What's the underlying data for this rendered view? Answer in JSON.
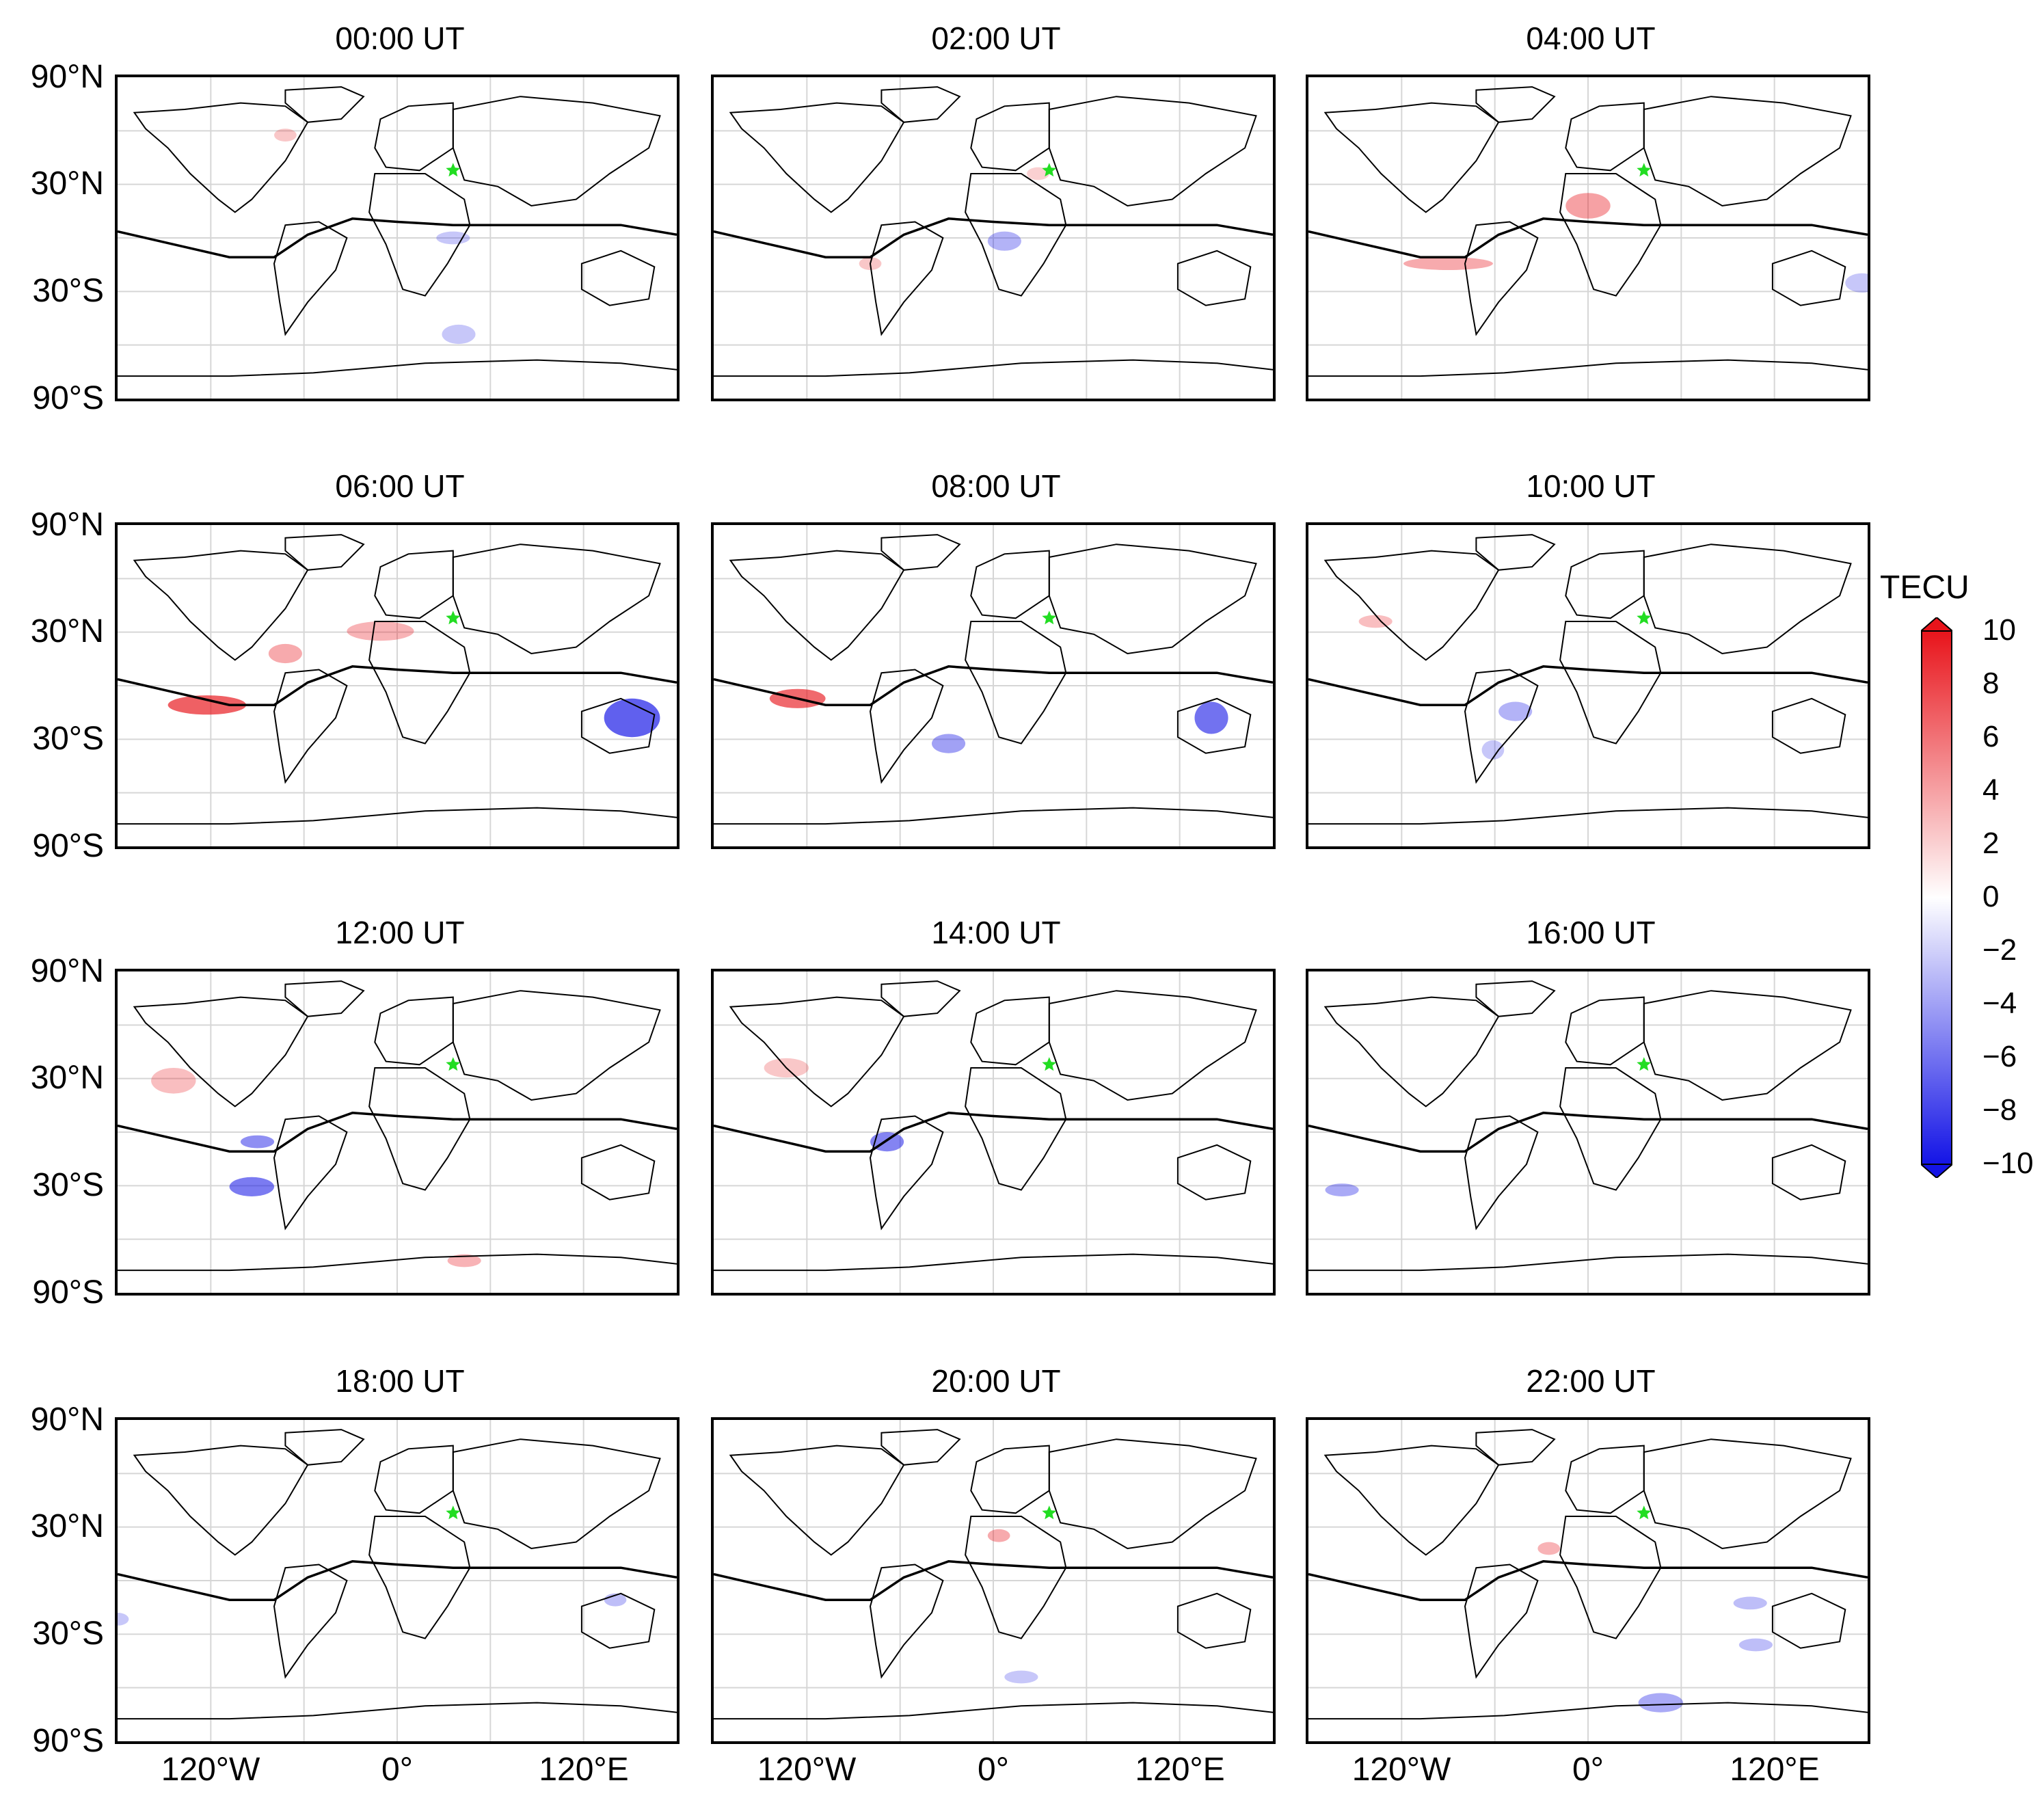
{
  "figure": {
    "panels": [
      {
        "title": "00:00 UT"
      },
      {
        "title": "02:00 UT"
      },
      {
        "title": "04:00 UT"
      },
      {
        "title": "06:00 UT"
      },
      {
        "title": "08:00 UT"
      },
      {
        "title": "10:00 UT"
      },
      {
        "title": "12:00 UT"
      },
      {
        "title": "14:00 UT"
      },
      {
        "title": "16:00 UT"
      },
      {
        "title": "18:00 UT"
      },
      {
        "title": "20:00 UT"
      },
      {
        "title": "22:00 UT"
      }
    ],
    "lat_ticks": [
      "90°N",
      "30°N",
      "30°S",
      "90°S"
    ],
    "lon_ticks": [
      "120°W",
      "0°",
      "120°E"
    ],
    "colorbar": {
      "unit": "TECU",
      "ticks": [
        "10",
        "8",
        "6",
        "4",
        "2",
        "0",
        "−2",
        "−4",
        "−6",
        "−8",
        "−10"
      ],
      "colors": {
        "max": "#e8141b",
        "zero": "#ffffff",
        "min": "#1414e6"
      }
    },
    "marker_color": "#22dd22"
  }
}
